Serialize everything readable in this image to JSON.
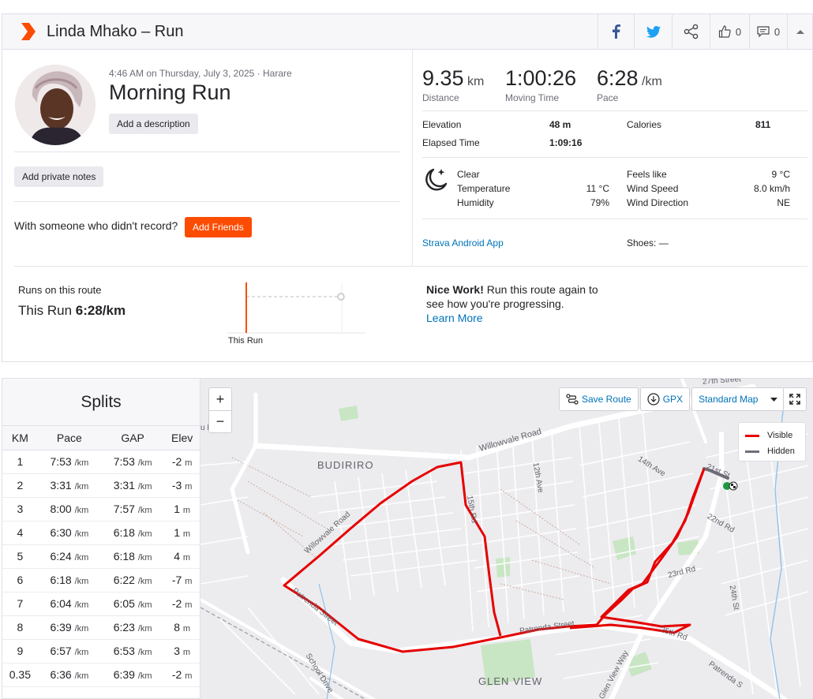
{
  "header": {
    "title": "Linda Mhako – Run",
    "kudos_count": "0",
    "comments_count": "0"
  },
  "activity": {
    "meta": "4:46 AM on Thursday, July 3, 2025 · Harare",
    "name": "Morning Run",
    "add_description": "Add a description",
    "add_private_notes": "Add private notes",
    "friends_question": "With someone who didn't record?",
    "add_friends": "Add Friends"
  },
  "stats": {
    "distance": {
      "value": "9.35",
      "unit": "km",
      "label": "Distance"
    },
    "moving_time": {
      "value": "1:00:26",
      "label": "Moving Time"
    },
    "pace": {
      "value": "6:28",
      "unit": "/km",
      "label": "Pace"
    },
    "elevation": {
      "label": "Elevation",
      "value": "48 m"
    },
    "calories": {
      "label": "Calories",
      "value": "811"
    },
    "elapsed": {
      "label": "Elapsed Time",
      "value": "1:09:16"
    }
  },
  "weather": {
    "condition": "Clear",
    "temperature": {
      "label": "Temperature",
      "value": "11 °C"
    },
    "humidity": {
      "label": "Humidity",
      "value": "79%"
    },
    "feels_like": {
      "label": "Feels like",
      "value": "9 °C"
    },
    "wind_speed": {
      "label": "Wind Speed",
      "value": "8.0 km/h"
    },
    "wind_direction": {
      "label": "Wind Direction",
      "value": "NE"
    }
  },
  "device": "Strava Android App",
  "shoes": "Shoes: —",
  "route": {
    "title": "Runs on this route",
    "this_run_prefix": "This Run",
    "this_run_pace": "6:28/km",
    "chart_label": "This Run",
    "nice_bold": "Nice Work!",
    "nice_text": "Run this route again to see how you're progressing.",
    "learn_more": "Learn More"
  },
  "splits": {
    "title": "Splits",
    "headers": [
      "KM",
      "Pace",
      "GAP",
      "Elev"
    ],
    "unit_pace": "/km",
    "unit_elev": "m",
    "rows": [
      {
        "km": "1",
        "pace": "7:53",
        "gap": "7:53",
        "elev": "-2"
      },
      {
        "km": "2",
        "pace": "3:31",
        "gap": "3:31",
        "elev": "-3"
      },
      {
        "km": "3",
        "pace": "8:00",
        "gap": "7:57",
        "elev": "1"
      },
      {
        "km": "4",
        "pace": "6:30",
        "gap": "6:18",
        "elev": "1"
      },
      {
        "km": "5",
        "pace": "6:24",
        "gap": "6:18",
        "elev": "4"
      },
      {
        "km": "6",
        "pace": "6:18",
        "gap": "6:22",
        "elev": "-7"
      },
      {
        "km": "7",
        "pace": "6:04",
        "gap": "6:05",
        "elev": "-2"
      },
      {
        "km": "8",
        "pace": "6:39",
        "gap": "6:23",
        "elev": "8"
      },
      {
        "km": "9",
        "pace": "6:57",
        "gap": "6:53",
        "elev": "3"
      },
      {
        "km": "0.35",
        "pace": "6:36",
        "gap": "6:39",
        "elev": "-2"
      }
    ]
  },
  "map": {
    "save_route": "Save Route",
    "gpx": "GPX",
    "map_style": "Standard Map",
    "legend_visible": "Visible",
    "legend_hidden": "Hidden",
    "zoom_in": "+",
    "zoom_out": "−",
    "labels": {
      "budiriro": "BUDIRIRO",
      "glen_view": "GLEN VIEW",
      "willowvale_road": "Willowvale Road",
      "willowvale_road_2": "Willowvale Road",
      "patrenda_street": "Patrenda Street",
      "patrenda_street_2": "Patrenda Street",
      "patrenda_street_3": "Patrenda S",
      "fifteenth_rd": "15th Rd",
      "twelfth_ave": "12th Ave",
      "fourteenth_ave": "14th Ave",
      "twentysecond_rd": "22nd Rd",
      "twentythird_rd": "23rd Rd",
      "twentyfourth_st": "24th St",
      "twentyfifth_rd": "25th Rd",
      "twentyseventh_street": "27th Street",
      "school_drive": "School Drive",
      "glen_view_way": "Glen View Way",
      "first_st": "21st St",
      "drive_left": "u Drive"
    }
  },
  "colors": {
    "brand": "#fc4c02",
    "visible_route": "#e60000",
    "hidden_route": "#6e6e78",
    "link": "#0073b8"
  }
}
